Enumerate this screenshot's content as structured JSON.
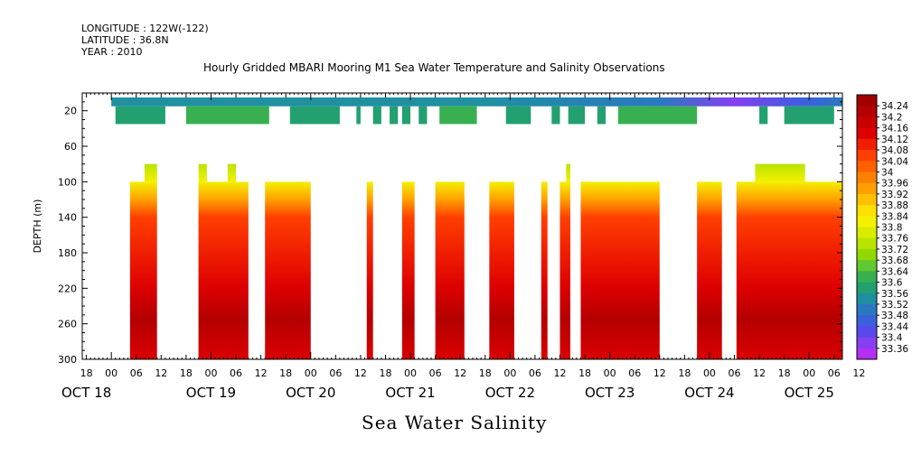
{
  "header": {
    "longitude": "LONGITUDE : 122W(-122)",
    "latitude": "LATITUDE : 36.8N",
    "year": "YEAR : 2010"
  },
  "title": "Hourly Gridded MBARI Mooring M1 Sea Water Temperature and Salinity Observations",
  "bottom_title": "Sea Water Salinity",
  "chart_data": {
    "type": "heatmap",
    "title": "Hourly Gridded MBARI Mooring M1 Sea Water Temperature and Salinity Observations",
    "xlabel": "",
    "ylabel": "DEPTH (m)",
    "y_axis": {
      "range": [
        0,
        300
      ],
      "inverted": true,
      "ticks": [
        20,
        60,
        100,
        140,
        180,
        220,
        260,
        300
      ]
    },
    "x_axis": {
      "unit": "hours since OCT 18 00:00",
      "range": [
        -7,
        176
      ],
      "tick_labels": [
        "18",
        "00",
        "06",
        "12",
        "18",
        "00",
        "06",
        "12",
        "18",
        "00",
        "06",
        "12",
        "18",
        "00",
        "06",
        "12",
        "18",
        "00",
        "06",
        "12",
        "18",
        "00",
        "06",
        "12",
        "18",
        "00",
        "06",
        "12",
        "18",
        "00",
        "06",
        "12"
      ],
      "day_labels": [
        "OCT 18",
        "OCT 19",
        "OCT 20",
        "OCT 21",
        "OCT 22",
        "OCT 23",
        "OCT 24",
        "OCT 25"
      ]
    },
    "colorbar": {
      "levels": [
        34.24,
        34.2,
        34.16,
        34.12,
        34.08,
        34.04,
        34.0,
        33.96,
        33.92,
        33.88,
        33.84,
        33.8,
        33.76,
        33.72,
        33.68,
        33.64,
        33.6,
        33.56,
        33.52,
        33.48,
        33.44,
        33.4,
        33.36
      ],
      "level_labels": [
        "34.24",
        "34.2",
        "34.16",
        "34.12",
        "34.08",
        "34.04",
        "34",
        "33.96",
        "33.92",
        "33.88",
        "33.84",
        "33.8",
        "33.76",
        "33.72",
        "33.68",
        "33.64",
        "33.6",
        "33.56",
        "33.52",
        "33.48",
        "33.44",
        "33.4",
        "33.36"
      ],
      "colors": [
        "#a00000",
        "#b40000",
        "#c80000",
        "#dc0000",
        "#f01e00",
        "#ff4000",
        "#ff6000",
        "#ff8000",
        "#ffa000",
        "#ffc000",
        "#ffe000",
        "#f4f000",
        "#d8ec00",
        "#b8e400",
        "#90d800",
        "#60c830",
        "#38b050",
        "#22a070",
        "#2090a0",
        "#2a78c0",
        "#3a60dc",
        "#5a48ec",
        "#8440f0",
        "#b430f0"
      ]
    },
    "depth_bands": {
      "surface": [
        5,
        15
      ],
      "shallow": [
        15,
        35
      ],
      "deep": [
        80,
        300
      ]
    },
    "surface_band": {
      "x_range": [
        0,
        176
      ],
      "salinity_range": [
        33.36,
        33.56
      ]
    },
    "shallow_bins": [
      {
        "x": [
          1,
          13
        ],
        "s": 33.56
      },
      {
        "x": [
          18,
          38
        ],
        "s": 33.6
      },
      {
        "x": [
          43,
          55
        ],
        "s": 33.58
      },
      {
        "x": [
          59,
          60
        ],
        "s": 33.56
      },
      {
        "x": [
          63,
          65
        ],
        "s": 33.56
      },
      {
        "x": [
          67,
          69
        ],
        "s": 33.58
      },
      {
        "x": [
          70,
          72
        ],
        "s": 33.56
      },
      {
        "x": [
          74,
          76
        ],
        "s": 33.58
      },
      {
        "x": [
          79,
          88
        ],
        "s": 33.6
      },
      {
        "x": [
          95,
          101
        ],
        "s": 33.56
      },
      {
        "x": [
          106,
          108
        ],
        "s": 33.58
      },
      {
        "x": [
          110,
          114
        ],
        "s": 33.56
      },
      {
        "x": [
          117,
          119
        ],
        "s": 33.56
      },
      {
        "x": [
          122,
          141
        ],
        "s": 33.6
      },
      {
        "x": [
          156,
          158
        ],
        "s": 33.56
      },
      {
        "x": [
          162,
          174
        ],
        "s": 33.56
      }
    ],
    "deep_segments": [
      {
        "x": [
          4.5,
          10
        ],
        "top": 100
      },
      {
        "x": [
          8,
          11
        ],
        "top": 80
      },
      {
        "x": [
          21,
          33
        ],
        "top": 100
      },
      {
        "x": [
          21,
          23
        ],
        "top": 80
      },
      {
        "x": [
          28,
          30
        ],
        "top": 80
      },
      {
        "x": [
          37,
          48
        ],
        "top": 100
      },
      {
        "x": [
          61.5,
          63
        ],
        "top": 100
      },
      {
        "x": [
          70,
          73
        ],
        "top": 100
      },
      {
        "x": [
          78,
          85
        ],
        "top": 100
      },
      {
        "x": [
          91,
          97
        ],
        "top": 100
      },
      {
        "x": [
          103.5,
          105
        ],
        "top": 100
      },
      {
        "x": [
          108,
          110
        ],
        "top": 100
      },
      {
        "x": [
          109.5,
          110.5
        ],
        "top": 80
      },
      {
        "x": [
          113,
          132
        ],
        "top": 100
      },
      {
        "x": [
          141,
          147
        ],
        "top": 100
      },
      {
        "x": [
          150.5,
          176
        ],
        "top": 100
      },
      {
        "x": [
          155,
          167
        ],
        "top": 80
      }
    ],
    "deep_profile": [
      {
        "depth": 80,
        "salinity": 33.74
      },
      {
        "depth": 100,
        "salinity": 33.8
      },
      {
        "depth": 120,
        "salinity": 33.92
      },
      {
        "depth": 140,
        "salinity": 34.04
      },
      {
        "depth": 180,
        "salinity": 34.06
      },
      {
        "depth": 220,
        "salinity": 34.14
      },
      {
        "depth": 255,
        "salinity": 34.22
      },
      {
        "depth": 300,
        "salinity": 34.14
      }
    ]
  }
}
